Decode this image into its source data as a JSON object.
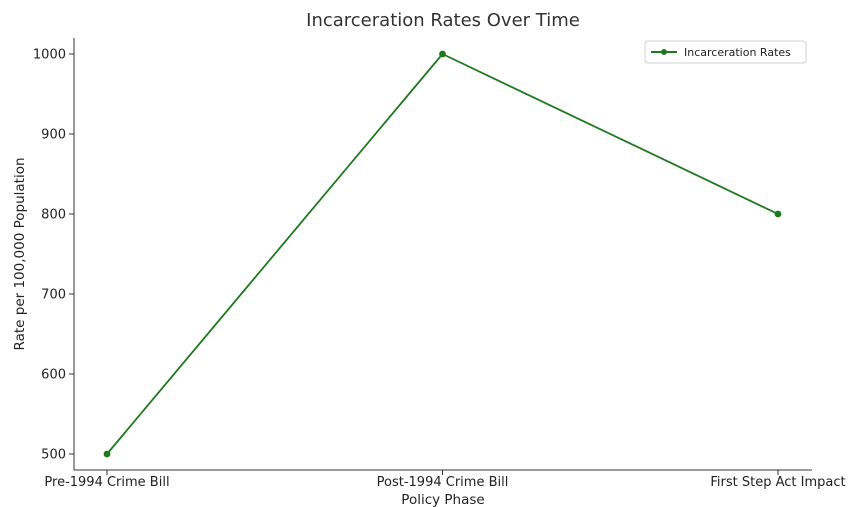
{
  "chart_data": {
    "type": "line",
    "title": "Incarceration Rates Over Time",
    "xlabel": "Policy Phase",
    "ylabel": "Rate per 100,000 Population",
    "categories": [
      "Pre-1994 Crime Bill",
      "Post-1994 Crime Bill",
      "First Step Act Impact"
    ],
    "series": [
      {
        "name": "Incarceration Rates",
        "values": [
          500,
          1000,
          800
        ],
        "color": "#1f7a1f"
      }
    ],
    "ylim": [
      480,
      1020
    ],
    "yticks": [
      500,
      600,
      700,
      800,
      900,
      1000
    ],
    "grid": false,
    "legend": "top-right"
  }
}
